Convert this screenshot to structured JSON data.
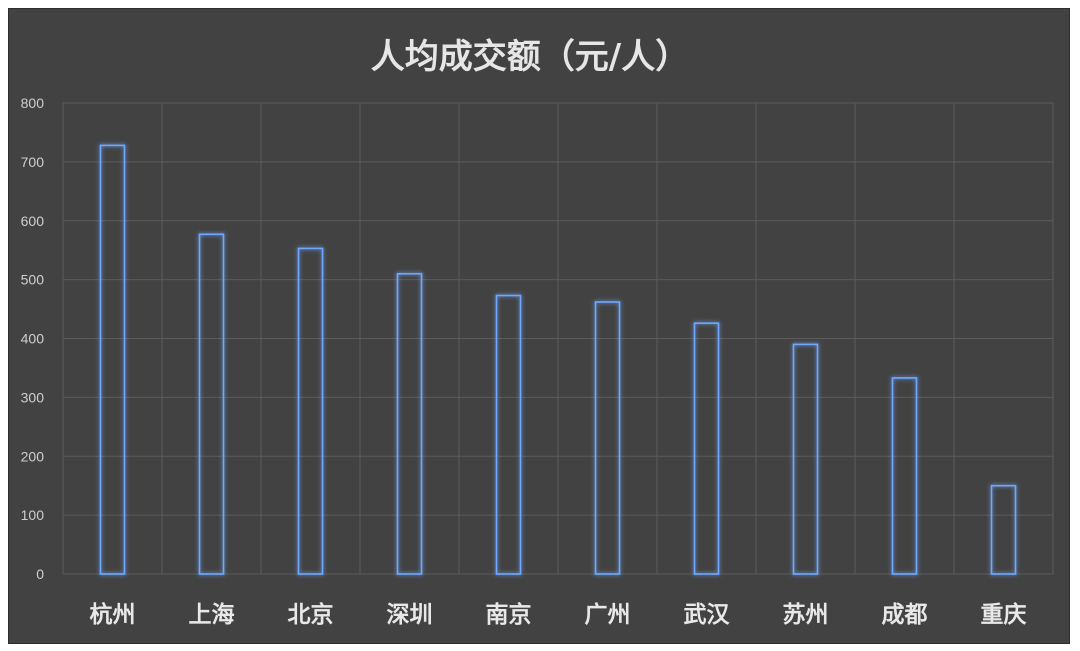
{
  "chart_data": {
    "type": "bar",
    "title": "人均成交额（元/人）",
    "xlabel": "",
    "ylabel": "",
    "categories": [
      "杭州",
      "上海",
      "北京",
      "深圳",
      "南京",
      "广州",
      "武汉",
      "苏州",
      "成都",
      "重庆"
    ],
    "values": [
      728,
      577,
      553,
      510,
      473,
      462,
      426,
      390,
      333,
      150
    ],
    "ylim": [
      0,
      800
    ],
    "yticks": [
      0,
      100,
      200,
      300,
      400,
      500,
      600,
      700,
      800
    ],
    "grid": true,
    "legend": "none",
    "colors": {
      "background": "#424242",
      "bar_outline": "#6fa8ff",
      "grid": "#5c5c5c",
      "text": "#e8e8e8"
    }
  }
}
